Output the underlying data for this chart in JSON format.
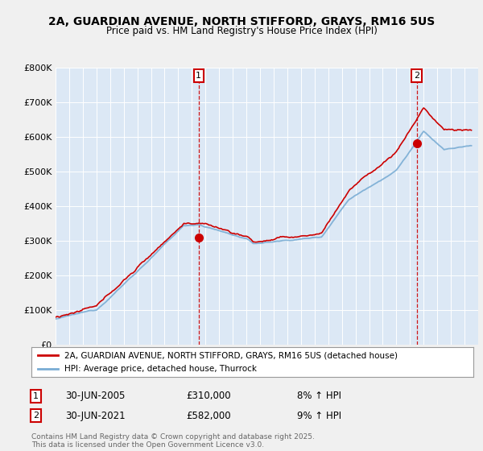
{
  "title_line1": "2A, GUARDIAN AVENUE, NORTH STIFFORD, GRAYS, RM16 5US",
  "title_line2": "Price paid vs. HM Land Registry's House Price Index (HPI)",
  "legend_label1": "2A, GUARDIAN AVENUE, NORTH STIFFORD, GRAYS, RM16 5US (detached house)",
  "legend_label2": "HPI: Average price, detached house, Thurrock",
  "annotation1_date": "30-JUN-2005",
  "annotation1_price": "£310,000",
  "annotation1_hpi": "8% ↑ HPI",
  "annotation2_date": "30-JUN-2021",
  "annotation2_price": "£582,000",
  "annotation2_hpi": "9% ↑ HPI",
  "footer": "Contains HM Land Registry data © Crown copyright and database right 2025.\nThis data is licensed under the Open Government Licence v3.0.",
  "ylim": [
    0,
    800000
  ],
  "yticks": [
    0,
    100000,
    200000,
    300000,
    400000,
    500000,
    600000,
    700000,
    800000
  ],
  "ytick_labels": [
    "£0",
    "£100K",
    "£200K",
    "£300K",
    "£400K",
    "£500K",
    "£600K",
    "£700K",
    "£800K"
  ],
  "bg_color": "#f0f0f0",
  "plot_bg_color": "#dce8f5",
  "plot_bg_color2": "#ffffff",
  "red_color": "#cc0000",
  "blue_color": "#7aadd4",
  "grid_color": "#ffffff",
  "annotation_line_color": "#cc0000",
  "marker1_x": 2005.5,
  "marker1_y": 310000,
  "marker2_x": 2021.5,
  "marker2_y": 582000,
  "xmin": 1995,
  "xmax": 2026
}
